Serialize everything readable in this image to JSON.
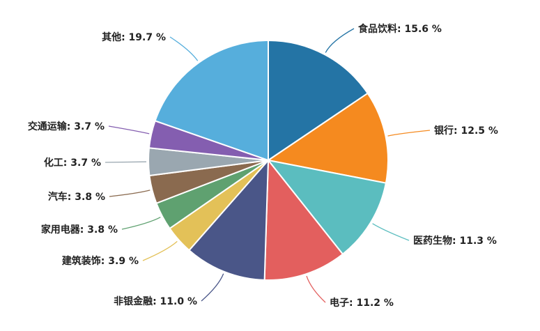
{
  "chart_data": {
    "type": "pie",
    "start": "12 o'clock, clockwise",
    "label_format": "{name}: {value} %",
    "slices": [
      {
        "name": "食品饮料",
        "value": 15.6,
        "color": "#2474a5"
      },
      {
        "name": "银行",
        "value": 12.5,
        "color": "#f58a1f"
      },
      {
        "name": "医药生物",
        "value": 11.3,
        "color": "#5bbdbf"
      },
      {
        "name": "电子",
        "value": 11.2,
        "color": "#e35f5e"
      },
      {
        "name": "非银金融",
        "value": 11.0,
        "color": "#4a5688"
      },
      {
        "name": "建筑装饰",
        "value": 3.9,
        "color": "#e3c158"
      },
      {
        "name": "家用电器",
        "value": 3.8,
        "color": "#5fa170"
      },
      {
        "name": "汽车",
        "value": 3.8,
        "color": "#8a6a4f"
      },
      {
        "name": "化工",
        "value": 3.7,
        "color": "#9aa7b0"
      },
      {
        "name": "交通运输",
        "value": 3.7,
        "color": "#845eb0"
      },
      {
        "name": "其他",
        "value": 19.7,
        "color": "#56aedc"
      }
    ]
  }
}
